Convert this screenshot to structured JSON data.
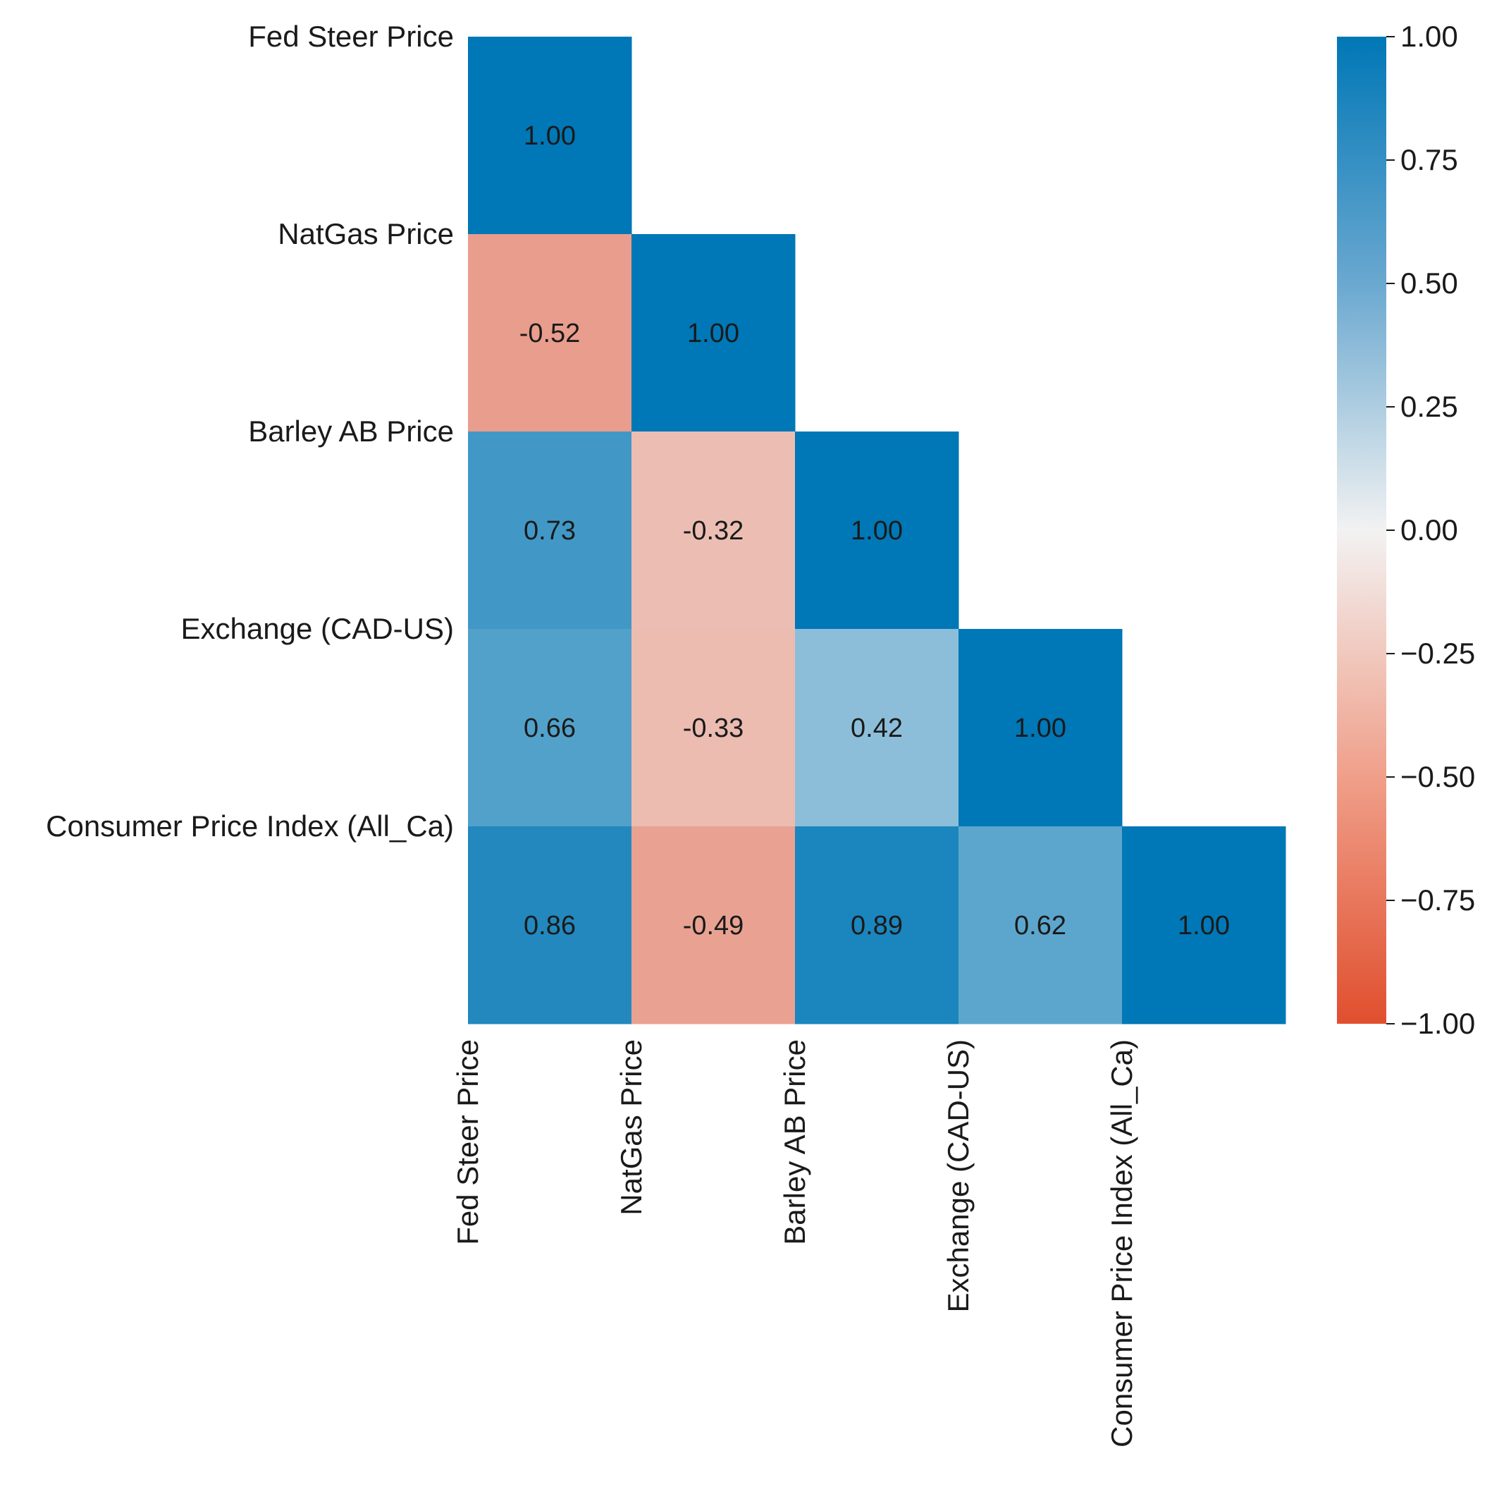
{
  "chart_data": {
    "type": "heatmap",
    "title": "",
    "variables": [
      "Fed Steer Price",
      "NatGas Price",
      "Barley AB Price",
      "Exchange (CAD-US)",
      "Consumer Price Index (All_Ca)"
    ],
    "mask": "lower-triangle",
    "matrix": [
      [
        1.0,
        null,
        null,
        null,
        null
      ],
      [
        -0.52,
        1.0,
        null,
        null,
        null
      ],
      [
        0.73,
        -0.32,
        1.0,
        null,
        null
      ],
      [
        0.66,
        -0.33,
        0.42,
        1.0,
        null
      ],
      [
        0.86,
        -0.49,
        0.89,
        0.62,
        1.0
      ]
    ],
    "value_format": "2 decimals",
    "colorbar": {
      "vmin": -1.0,
      "vmax": 1.0,
      "ticks": [
        1.0,
        0.75,
        0.5,
        0.25,
        0.0,
        -0.25,
        -0.5,
        -0.75,
        -1.0
      ],
      "tick_labels": [
        "1.00",
        "0.75",
        "0.50",
        "0.25",
        "0.00",
        "−0.25",
        "−0.50",
        "−0.75",
        "−1.00"
      ],
      "colormap": "diverging red-white-blue",
      "colors": {
        "negative": "#e04f2e",
        "zero": "#f2f2f2",
        "positive": "#0077b6"
      }
    },
    "y_axis_labels_position": "left",
    "x_axis_labels_rotation": "vertical",
    "grid": false,
    "legend": "colorbar right"
  }
}
